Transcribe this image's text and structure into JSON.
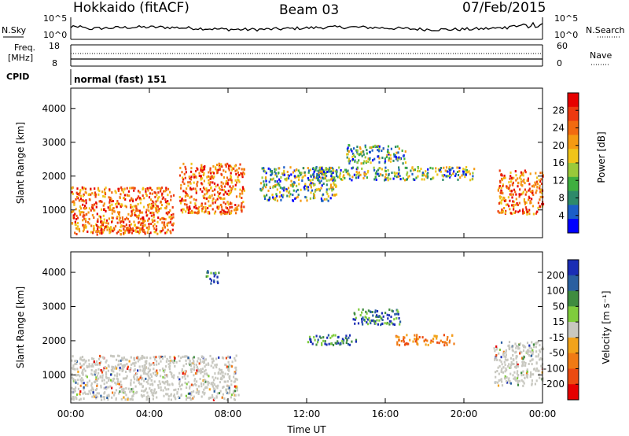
{
  "header": {
    "radar": "Hokkaido (fitACF)",
    "beam": "Beam 03",
    "date": "07/Feb/2015"
  },
  "status_panel": {
    "nsky_label": "N.Sky",
    "nsky_ticks": [
      "10^5",
      "10^0"
    ],
    "nsearch_label": "N.Search",
    "freq_label": "Freq.",
    "freq_unit": "[MHz]",
    "freq_ticks": [
      "18",
      "8"
    ],
    "nave_label": "Nave",
    "nave_ticks": [
      "60",
      "0"
    ],
    "cpid_label": "CPID",
    "cpid_value": "normal (fast) 151"
  },
  "chart_data": [
    {
      "type": "heatmap",
      "title": "",
      "quantity": "Power",
      "xlabel": "",
      "ylabel": "Slant Range [km]",
      "x_ticks": [
        "00:00",
        "04:00",
        "08:00",
        "12:00",
        "16:00",
        "20:00",
        "00:00"
      ],
      "y_ticks": [
        "1000",
        "2000",
        "3000",
        "4000"
      ],
      "ylim": [
        180,
        4600
      ],
      "colorbar": {
        "label": "Power [dB]",
        "ticks": [
          "4",
          "8",
          "12",
          "16",
          "20",
          "24",
          "28"
        ],
        "colors": [
          "#0000ff",
          "#1c5ec8",
          "#2e8a6a",
          "#3fae3f",
          "#9ac93a",
          "#f0c419",
          "#f59a12",
          "#f26a10",
          "#ec3a10",
          "#e60000"
        ]
      },
      "regions": [
        {
          "hours": [
            0.0,
            5.2
          ],
          "range_km": [
            300,
            1700
          ],
          "level": "high"
        },
        {
          "hours": [
            1.0,
            4.0
          ],
          "range_km": [
            350,
            600
          ],
          "level": "high"
        },
        {
          "hours": [
            5.5,
            8.8
          ],
          "range_km": [
            900,
            2400
          ],
          "level": "high"
        },
        {
          "hours": [
            9.6,
            13.5
          ],
          "range_km": [
            1300,
            2300
          ],
          "level": "mid"
        },
        {
          "hours": [
            14.0,
            17.0
          ],
          "range_km": [
            2400,
            2950
          ],
          "level": "mid"
        },
        {
          "hours": [
            12.5,
            20.5
          ],
          "range_km": [
            1900,
            2300
          ],
          "level": "mid"
        },
        {
          "hours": [
            21.7,
            24.0
          ],
          "range_km": [
            900,
            2200
          ],
          "level": "high"
        }
      ]
    },
    {
      "type": "heatmap",
      "title": "",
      "quantity": "Velocity",
      "xlabel": "Time UT",
      "ylabel": "Slant Range [km]",
      "x_ticks": [
        "00:00",
        "04:00",
        "08:00",
        "12:00",
        "16:00",
        "20:00",
        "00:00"
      ],
      "y_ticks": [
        "1000",
        "2000",
        "3000",
        "4000"
      ],
      "ylim": [
        180,
        4600
      ],
      "colorbar": {
        "label": "Velocity [m s⁻¹]",
        "ticks": [
          "200",
          "100",
          "50",
          "15",
          "-15",
          "-50",
          "-100",
          "-200"
        ],
        "colors": [
          "#1a2db5",
          "#2a5fa0",
          "#3f8c3f",
          "#7fcc3c",
          "#c8c8c0",
          "#f2a31a",
          "#f07a14",
          "#ec4a10",
          "#e60000"
        ]
      },
      "regions": [
        {
          "hours": [
            0.0,
            8.5
          ],
          "range_km": [
            300,
            1600
          ],
          "velocity": "near-zero"
        },
        {
          "hours": [
            6.8,
            7.5
          ],
          "range_km": [
            3700,
            4100
          ],
          "velocity": "positive"
        },
        {
          "hours": [
            14.3,
            16.8
          ],
          "range_km": [
            2500,
            2950
          ],
          "velocity": "positive"
        },
        {
          "hours": [
            12.0,
            14.5
          ],
          "range_km": [
            1900,
            2200
          ],
          "velocity": "positive"
        },
        {
          "hours": [
            16.5,
            19.5
          ],
          "range_km": [
            1900,
            2200
          ],
          "velocity": "negative"
        },
        {
          "hours": [
            21.5,
            24.0
          ],
          "range_km": [
            700,
            2000
          ],
          "velocity": "near-zero"
        }
      ]
    }
  ]
}
